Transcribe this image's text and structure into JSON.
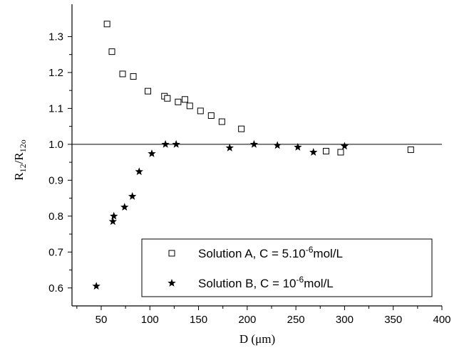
{
  "chart_data": {
    "type": "scatter",
    "xlabel": {
      "text": "D (",
      "symbol": "μ",
      "unit_rest": "m)"
    },
    "ylabel": {
      "base": "R",
      "sub": "12",
      "sep": "/R",
      "sub2": "12o"
    },
    "xlim": [
      20,
      400
    ],
    "ylim": [
      0.55,
      1.39
    ],
    "x_ticks": [
      50,
      100,
      150,
      200,
      250,
      300,
      350,
      400
    ],
    "y_ticks": [
      0.6,
      0.7,
      0.8,
      0.9,
      1.0,
      1.1,
      1.2,
      1.3
    ],
    "x_tick_labels": [
      "50",
      "100",
      "150",
      "200",
      "250",
      "300",
      "350",
      "400"
    ],
    "y_tick_labels": [
      "0.6",
      "0.7",
      "0.8",
      "0.9",
      "1.0",
      "1.1",
      "1.2",
      "1.3"
    ],
    "reference_line": {
      "y": 1.0
    },
    "grid": false,
    "legend_position": "bottom-right",
    "series": [
      {
        "name": "Solution A, C = 5.10",
        "name_sup": "-6",
        "name_suffix": "mol/L",
        "marker": "open-square",
        "points": [
          [
            56,
            1.335
          ],
          [
            61,
            1.258
          ],
          [
            72,
            1.196
          ],
          [
            83,
            1.189
          ],
          [
            98,
            1.148
          ],
          [
            115,
            1.134
          ],
          [
            118,
            1.128
          ],
          [
            129,
            1.118
          ],
          [
            136,
            1.125
          ],
          [
            141,
            1.107
          ],
          [
            152,
            1.093
          ],
          [
            163,
            1.08
          ],
          [
            174,
            1.063
          ],
          [
            194,
            1.043
          ],
          [
            281,
            0.981
          ],
          [
            296,
            0.978
          ],
          [
            368,
            0.985
          ]
        ]
      },
      {
        "name": "Solution B, C = 10",
        "name_sup": "-6",
        "name_suffix": "mol/L",
        "marker": "filled-star",
        "points": [
          [
            45,
            0.605
          ],
          [
            62,
            0.785
          ],
          [
            63,
            0.8
          ],
          [
            74,
            0.825
          ],
          [
            82,
            0.855
          ],
          [
            89,
            0.924
          ],
          [
            102,
            0.974
          ],
          [
            116,
            1.0
          ],
          [
            127,
            1.0
          ],
          [
            182,
            0.99
          ],
          [
            207,
            1.0
          ],
          [
            231,
            0.997
          ],
          [
            252,
            0.992
          ],
          [
            268,
            0.978
          ],
          [
            300,
            0.995
          ]
        ]
      }
    ]
  }
}
